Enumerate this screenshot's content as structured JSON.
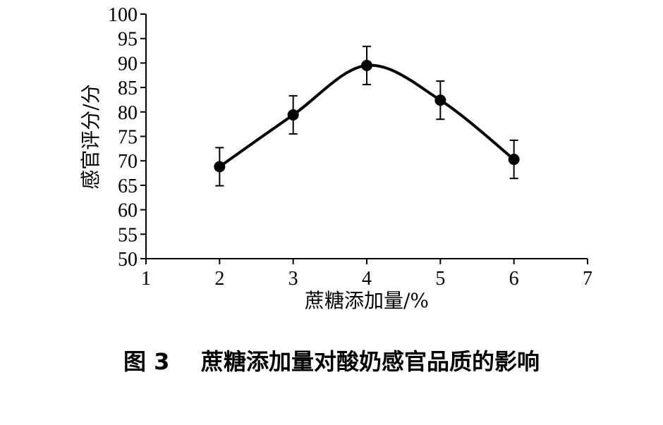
{
  "caption": "图 3    蔗糖添加量对酸奶感官品质的影响",
  "chart_data": {
    "type": "line",
    "xlabel": "蔗糖添加量/%",
    "ylabel": "感官评分/分",
    "xlim": [
      1,
      7
    ],
    "ylim": [
      50,
      100
    ],
    "xticks": [
      1,
      2,
      3,
      4,
      5,
      6,
      7
    ],
    "yticks": [
      50,
      55,
      60,
      65,
      70,
      75,
      80,
      85,
      90,
      95,
      100
    ],
    "grid": false,
    "smooth": true,
    "series": [
      {
        "x": [
          2,
          3,
          4,
          5,
          6
        ],
        "y": [
          68.8,
          79.4,
          89.5,
          82.4,
          70.3
        ],
        "error": [
          3.9,
          3.9,
          3.9,
          3.9,
          3.9
        ]
      }
    ]
  }
}
